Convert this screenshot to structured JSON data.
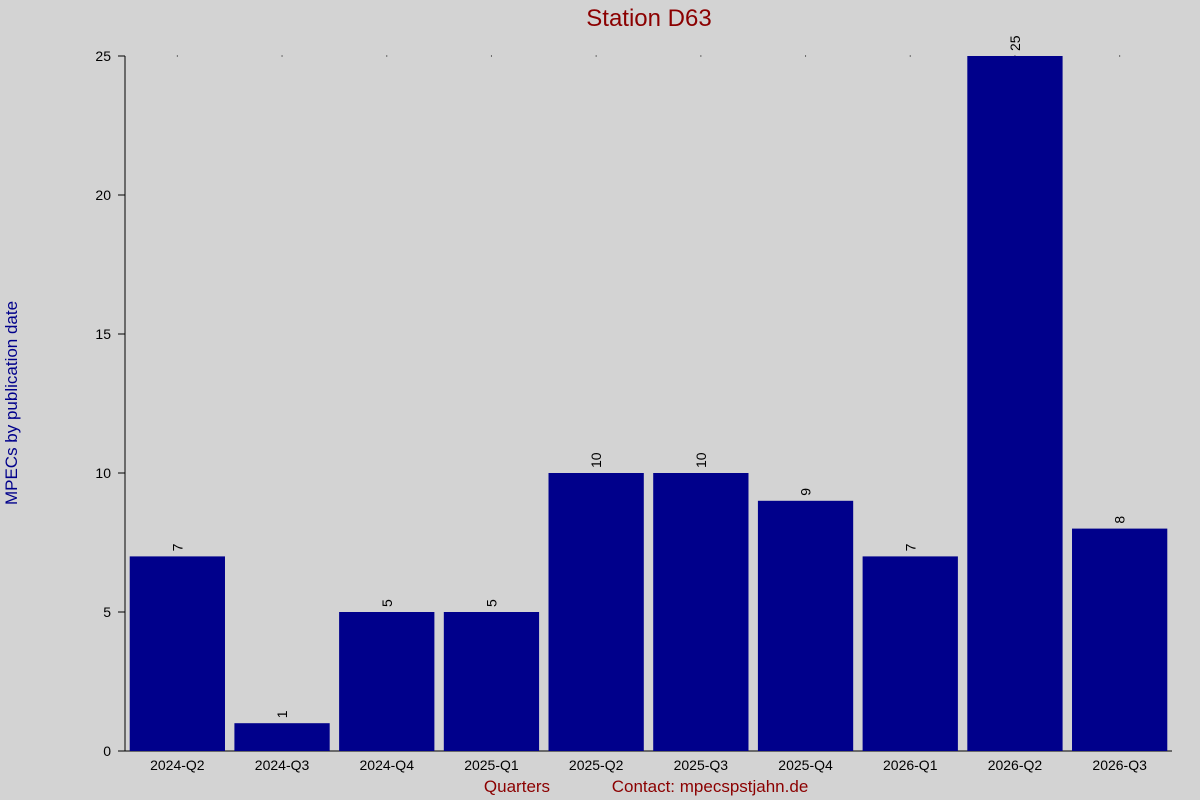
{
  "chart_data": {
    "type": "bar",
    "title": "Station D63",
    "y_label": "MPECs by publication date",
    "x_label": "Quarters",
    "annotation": "Contact: mpecspstjahn.de",
    "categories": [
      "2024-Q2",
      "2024-Q3",
      "2024-Q4",
      "2025-Q1",
      "2025-Q2",
      "2025-Q3",
      "2025-Q4",
      "2026-Q1",
      "2026-Q2",
      "2026-Q3"
    ],
    "values": [
      7,
      1,
      5,
      5,
      10,
      10,
      9,
      7,
      25,
      8
    ],
    "color": "#00008b",
    "ylim": [
      0,
      25
    ],
    "yticks": [
      0,
      5,
      10,
      15,
      20,
      25
    ],
    "grid": false
  }
}
